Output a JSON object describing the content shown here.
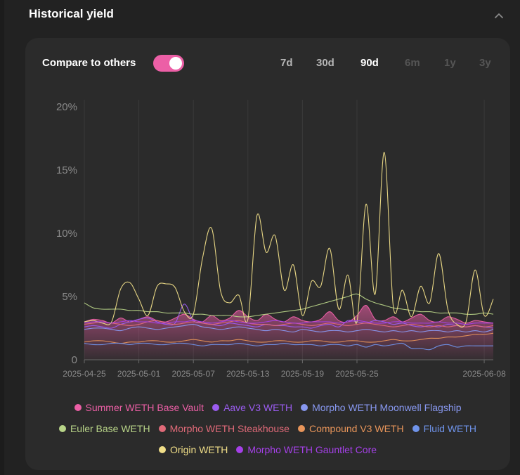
{
  "header": {
    "title": "Historical yield",
    "collapse_icon": "chevron-up-icon"
  },
  "controls": {
    "compare_label": "Compare to others",
    "compare_enabled": true,
    "toggle_color": "#ec5fa6",
    "ranges": [
      {
        "label": "7d",
        "state": "enabled"
      },
      {
        "label": "30d",
        "state": "enabled"
      },
      {
        "label": "90d",
        "state": "active"
      },
      {
        "label": "6m",
        "state": "disabled"
      },
      {
        "label": "1y",
        "state": "disabled"
      },
      {
        "label": "3y",
        "state": "disabled"
      }
    ]
  },
  "chart_data": {
    "type": "area",
    "x_start": "2025-04-25",
    "x_end": "2025-06-09",
    "x_ticks": [
      "2025-04-25",
      "2025-05-01",
      "2025-05-07",
      "2025-05-13",
      "2025-05-19",
      "2025-05-25",
      "2025-06-08"
    ],
    "y_ticks": [
      "0",
      "5%",
      "10%",
      "15%",
      "20%"
    ],
    "ylim": [
      0,
      20
    ],
    "grid": "vertical",
    "legend_position": "bottom",
    "series": [
      {
        "name": "Summer WETH Base Vault",
        "color": "#ec5fa6",
        "fill": true,
        "values": [
          3.0,
          3.2,
          3.1,
          2.9,
          3.3,
          3.0,
          3.2,
          3.4,
          3.1,
          3.0,
          3.3,
          3.6,
          3.2,
          3.0,
          3.5,
          3.1,
          3.3,
          3.9,
          3.4,
          3.1,
          3.6,
          3.2,
          3.0,
          3.4,
          3.1,
          3.0,
          3.2,
          3.8,
          3.1,
          3.0,
          3.5,
          4.3,
          3.2,
          3.1,
          3.4,
          3.0,
          3.3,
          3.6,
          3.1,
          3.0,
          3.4,
          3.2,
          2.9,
          3.1,
          3.0,
          2.9
        ]
      },
      {
        "name": "Aave V3 WETH",
        "color": "#9b5cf0",
        "fill": false,
        "values": [
          2.6,
          2.7,
          2.6,
          2.5,
          2.8,
          3.0,
          3.2,
          3.3,
          3.0,
          2.8,
          2.9,
          4.4,
          3.1,
          2.9,
          2.8,
          2.7,
          2.9,
          2.8,
          2.7,
          2.6,
          2.8,
          2.7,
          2.7,
          2.6,
          2.6,
          2.5,
          2.7,
          2.8,
          2.6,
          3.1,
          3.0,
          2.9,
          3.1,
          3.0,
          2.8,
          2.9,
          2.7,
          2.6,
          2.7,
          2.6,
          2.8,
          2.7,
          2.6,
          2.7,
          2.6,
          2.5
        ]
      },
      {
        "name": "Morpho WETH Moonwell Flagship",
        "color": "#8898f0",
        "fill": false,
        "values": [
          2.4,
          2.5,
          2.5,
          2.4,
          2.3,
          2.5,
          2.6,
          2.5,
          2.4,
          2.5,
          2.6,
          2.7,
          2.8,
          2.6,
          2.5,
          2.4,
          2.5,
          2.6,
          2.5,
          2.4,
          2.3,
          2.4,
          2.3,
          2.2,
          2.4,
          2.3,
          2.2,
          2.3,
          2.3,
          2.2,
          2.3,
          2.4,
          2.3,
          2.2,
          2.3,
          2.2,
          2.3,
          2.2,
          2.3,
          2.3,
          2.2,
          2.3,
          2.2,
          2.3,
          2.2,
          2.4
        ]
      },
      {
        "name": "Euler Base WETH",
        "color": "#b8d488",
        "fill": false,
        "values": [
          4.5,
          4.1,
          4.0,
          4.0,
          4.0,
          3.9,
          3.9,
          3.8,
          3.8,
          3.7,
          3.7,
          3.7,
          3.6,
          3.6,
          3.5,
          3.5,
          3.5,
          3.4,
          3.4,
          3.5,
          3.6,
          3.7,
          3.8,
          3.9,
          4.0,
          4.2,
          4.4,
          4.6,
          4.8,
          5.0,
          5.2,
          4.8,
          4.5,
          4.3,
          4.1,
          4.0,
          3.9,
          3.8,
          3.8,
          3.7,
          3.7,
          3.7,
          3.6,
          3.6,
          3.7,
          3.6
        ]
      },
      {
        "name": "Morpho WETH Steakhouse",
        "color": "#e06a78",
        "fill": false,
        "values": [
          2.8,
          2.9,
          3.0,
          2.9,
          2.8,
          2.7,
          2.8,
          3.0,
          3.1,
          2.9,
          2.8,
          2.9,
          3.0,
          2.9,
          2.8,
          2.9,
          3.0,
          3.1,
          2.9,
          2.8,
          2.8,
          2.7,
          2.8,
          2.9,
          2.8,
          2.7,
          2.8,
          2.9,
          2.8,
          2.7,
          2.8,
          2.9,
          2.8,
          2.7,
          2.6,
          2.7,
          2.8,
          2.7,
          2.6,
          2.7,
          2.6,
          2.7,
          2.6,
          2.7,
          2.6,
          2.7
        ]
      },
      {
        "name": "Compound V3 WETH",
        "color": "#e8955a",
        "fill": false,
        "values": [
          1.4,
          1.5,
          1.5,
          1.4,
          1.3,
          1.4,
          1.4,
          1.5,
          1.5,
          1.4,
          1.4,
          1.5,
          1.6,
          1.5,
          1.4,
          1.5,
          1.5,
          1.6,
          1.5,
          1.4,
          1.4,
          1.5,
          1.5,
          1.4,
          1.4,
          1.5,
          1.5,
          1.4,
          1.4,
          1.5,
          1.5,
          1.4,
          1.4,
          1.5,
          1.6,
          1.5,
          1.5,
          1.6,
          1.7,
          1.7,
          1.8,
          1.8,
          1.9,
          2.0,
          2.0,
          2.1
        ]
      },
      {
        "name": "Fluid WETH",
        "color": "#6f93ea",
        "fill": false,
        "values": [
          1.3,
          1.2,
          1.2,
          1.3,
          1.3,
          1.2,
          1.3,
          1.3,
          1.2,
          1.2,
          1.3,
          1.3,
          1.2,
          1.1,
          1.2,
          1.2,
          1.2,
          1.3,
          1.2,
          1.1,
          1.2,
          1.2,
          1.3,
          1.2,
          1.2,
          1.2,
          1.1,
          1.2,
          1.2,
          1.1,
          1.2,
          1.0,
          1.2,
          1.1,
          1.2,
          1.3,
          0.9,
          0.9,
          0.8,
          1.1,
          1.2,
          1.0,
          1.1,
          1.1,
          1.1,
          1.1
        ]
      },
      {
        "name": "Origin WETH",
        "color": "#f0de88",
        "fill": false,
        "values": [
          3.0,
          3.1,
          2.9,
          3.0,
          5.6,
          6.1,
          4.8,
          3.5,
          5.8,
          6.0,
          5.7,
          3.8,
          3.6,
          8.0,
          10.4,
          5.4,
          4.5,
          5.1,
          3.2,
          11.4,
          8.5,
          9.8,
          5.5,
          7.5,
          3.5,
          6.2,
          5.8,
          8.8,
          4.0,
          6.7,
          3.0,
          12.3,
          5.2,
          16.4,
          4.2,
          5.5,
          3.4,
          5.8,
          4.5,
          8.4,
          4.0,
          2.8,
          3.0,
          7.1,
          3.5,
          4.8
        ]
      },
      {
        "name": "Morpho WETH Gauntlet Core",
        "color": "#a540e8",
        "fill": false,
        "values": [
          2.9,
          3.0,
          3.0,
          2.9,
          3.0,
          3.1,
          3.0,
          3.0,
          2.9,
          2.9,
          3.0,
          3.0,
          3.1,
          3.0,
          2.9,
          3.0,
          3.1,
          3.0,
          2.9,
          2.9,
          3.0,
          3.1,
          3.0,
          2.9,
          2.9,
          3.0,
          3.0,
          3.0,
          2.9,
          3.0,
          3.1,
          3.0,
          2.9,
          2.9,
          3.0,
          3.0,
          2.9,
          2.9,
          2.9,
          3.0,
          2.9,
          2.9,
          2.8,
          2.9,
          2.9,
          2.9
        ]
      }
    ]
  }
}
